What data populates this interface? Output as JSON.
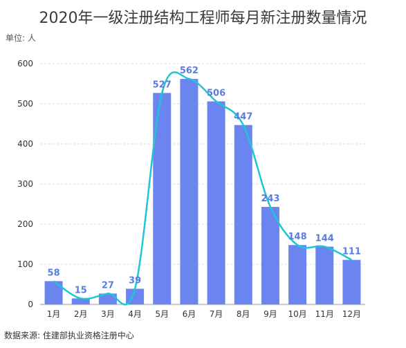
{
  "title": "2020年一级注册结构工程师每月新注册数量情况",
  "unit_label": "单位: 人",
  "source": "数据来源: 住建部执业资格注册中心",
  "colors": {
    "bar": "#6b85f0",
    "line": "#1ec6d4",
    "label": "#5b7be0"
  },
  "chart_data": {
    "type": "bar",
    "title": "2020年一级注册结构工程师每月新注册数量情况",
    "xlabel": "",
    "ylabel": "",
    "ylim": [
      0,
      600
    ],
    "yticks": [
      0,
      100,
      200,
      300,
      400,
      500,
      600
    ],
    "categories": [
      "1月",
      "2月",
      "3月",
      "4月",
      "5月",
      "6月",
      "7月",
      "8月",
      "9月",
      "10月",
      "11月",
      "12月"
    ],
    "values": [
      58,
      15,
      27,
      39,
      527,
      562,
      506,
      447,
      243,
      148,
      144,
      111
    ],
    "overlay_line": "smoothed line over the same values",
    "grid": true,
    "legend": "none"
  }
}
